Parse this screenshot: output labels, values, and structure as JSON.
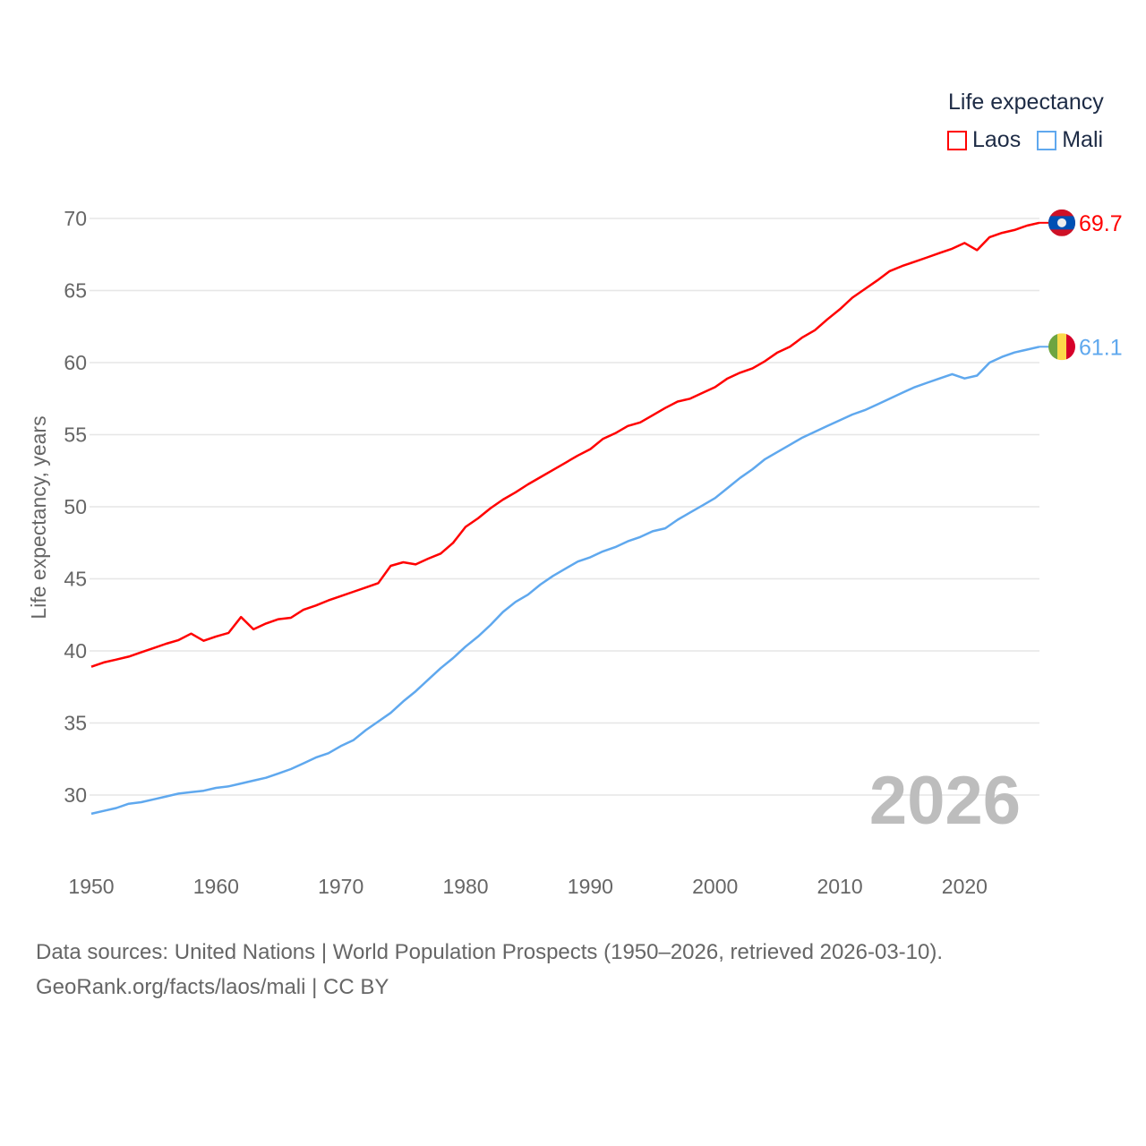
{
  "chart_data": {
    "type": "line",
    "legend_title": "Life expectancy",
    "legend_position": "top-right",
    "ylabel": "Life expectancy, years",
    "xlabel": "",
    "ylim": [
      25,
      70
    ],
    "xlim": [
      1950,
      2026
    ],
    "yticks": [
      30,
      35,
      40,
      45,
      50,
      55,
      60,
      65,
      70
    ],
    "xticks": [
      1950,
      1960,
      1970,
      1980,
      1990,
      2000,
      2010,
      2020
    ],
    "grid": true,
    "watermark_year": "2026",
    "x": [
      1950,
      1951,
      1952,
      1953,
      1954,
      1955,
      1956,
      1957,
      1958,
      1959,
      1960,
      1961,
      1962,
      1963,
      1964,
      1965,
      1966,
      1967,
      1968,
      1969,
      1970,
      1971,
      1972,
      1973,
      1974,
      1975,
      1976,
      1977,
      1978,
      1979,
      1980,
      1981,
      1982,
      1983,
      1984,
      1985,
      1986,
      1987,
      1988,
      1989,
      1990,
      1991,
      1992,
      1993,
      1994,
      1995,
      1996,
      1997,
      1998,
      1999,
      2000,
      2001,
      2002,
      2003,
      2004,
      2005,
      2006,
      2007,
      2008,
      2009,
      2010,
      2011,
      2012,
      2013,
      2014,
      2015,
      2016,
      2017,
      2018,
      2019,
      2020,
      2021,
      2022,
      2023,
      2024,
      2025,
      2026
    ],
    "series": [
      {
        "name": "Laos",
        "color": "#ff0000",
        "end_label": "69.7",
        "values": [
          38.9,
          39.2,
          39.4,
          39.6,
          39.9,
          40.2,
          40.5,
          40.75,
          41.2,
          40.7,
          41.0,
          41.25,
          42.35,
          41.5,
          41.9,
          42.2,
          42.3,
          42.85,
          43.15,
          43.5,
          43.8,
          44.1,
          44.4,
          44.7,
          45.9,
          46.15,
          46.0,
          46.4,
          46.75,
          47.5,
          48.6,
          49.2,
          49.9,
          50.5,
          51.0,
          51.55,
          52.05,
          52.55,
          53.05,
          53.55,
          54.0,
          54.7,
          55.1,
          55.6,
          55.85,
          56.35,
          56.85,
          57.3,
          57.5,
          57.9,
          58.3,
          58.9,
          59.3,
          59.6,
          60.1,
          60.7,
          61.1,
          61.75,
          62.25,
          63.0,
          63.7,
          64.5,
          65.1,
          65.7,
          66.35,
          66.7,
          67.0,
          67.3,
          67.6,
          67.9,
          68.3,
          67.8,
          68.7,
          69.0,
          69.2,
          69.5,
          69.7
        ]
      },
      {
        "name": "Mali",
        "color": "#5fa8ee",
        "end_label": "61.1",
        "values": [
          28.7,
          28.9,
          29.1,
          29.4,
          29.5,
          29.7,
          29.9,
          30.1,
          30.2,
          30.3,
          30.5,
          30.6,
          30.8,
          31.0,
          31.2,
          31.5,
          31.8,
          32.2,
          32.6,
          32.9,
          33.4,
          33.8,
          34.5,
          35.1,
          35.7,
          36.5,
          37.2,
          38.0,
          38.8,
          39.5,
          40.3,
          41.0,
          41.8,
          42.7,
          43.4,
          43.9,
          44.6,
          45.2,
          45.7,
          46.2,
          46.5,
          46.9,
          47.2,
          47.6,
          47.9,
          48.3,
          48.5,
          49.1,
          49.6,
          50.1,
          50.6,
          51.3,
          52.0,
          52.6,
          53.3,
          53.8,
          54.3,
          54.8,
          55.2,
          55.6,
          56.0,
          56.4,
          56.7,
          57.1,
          57.5,
          57.9,
          58.3,
          58.6,
          58.9,
          59.2,
          58.9,
          59.1,
          60.0,
          60.4,
          60.7,
          60.9,
          61.1
        ]
      }
    ]
  },
  "footer": {
    "sources": "Data sources: United Nations | World Population Prospects (1950–2026, retrieved 2026-03-10).",
    "credit": "GeoRank.org/facts/laos/mali | CC BY"
  }
}
